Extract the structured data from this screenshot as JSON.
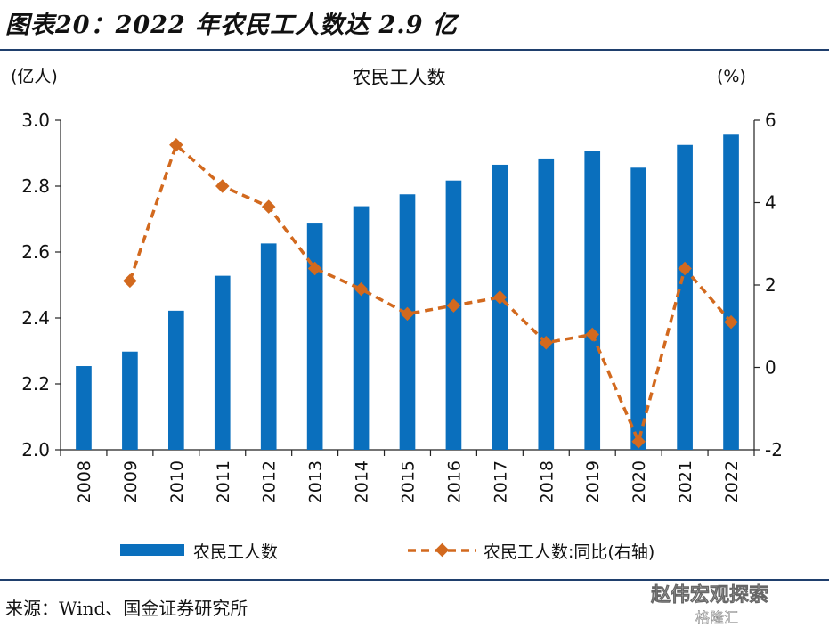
{
  "figure": {
    "title": "图表20：2022 年农民工人数达 2.9 亿",
    "source": "来源：Wind、国金证券研究所",
    "watermark": "赵伟宏观探索",
    "watermark_sub": "格隆汇"
  },
  "chart_data": {
    "type": "bar",
    "title": "农民工人数",
    "y_left_unit": "(亿人)",
    "y_right_unit": "(%)",
    "categories": [
      "2008",
      "2009",
      "2010",
      "2011",
      "2012",
      "2013",
      "2014",
      "2015",
      "2016",
      "2017",
      "2018",
      "2019",
      "2020",
      "2021",
      "2022"
    ],
    "y_left_range": [
      2.0,
      3.0
    ],
    "y_left_ticks": [
      "2.0",
      "2.2",
      "2.4",
      "2.6",
      "2.8",
      "3.0"
    ],
    "y_right_range": [
      -2,
      6
    ],
    "y_right_ticks": [
      "-2",
      "0",
      "2",
      "4",
      "6"
    ],
    "series": [
      {
        "name": "农民工人数",
        "type": "bar",
        "axis": "left",
        "color": "#0a6fbd",
        "values": [
          2.254,
          2.298,
          2.422,
          2.528,
          2.626,
          2.689,
          2.739,
          2.775,
          2.817,
          2.865,
          2.884,
          2.908,
          2.856,
          2.925,
          2.956
        ]
      },
      {
        "name": "农民工人数:同比(右轴)",
        "type": "line",
        "axis": "right",
        "color": "#d2691e",
        "style": "dashed-diamond",
        "values": [
          null,
          2.1,
          5.4,
          4.4,
          3.9,
          2.4,
          1.9,
          1.3,
          1.5,
          1.7,
          0.6,
          0.8,
          -1.8,
          2.4,
          1.1
        ]
      }
    ],
    "grid": false,
    "legend_placement": "bottom"
  }
}
